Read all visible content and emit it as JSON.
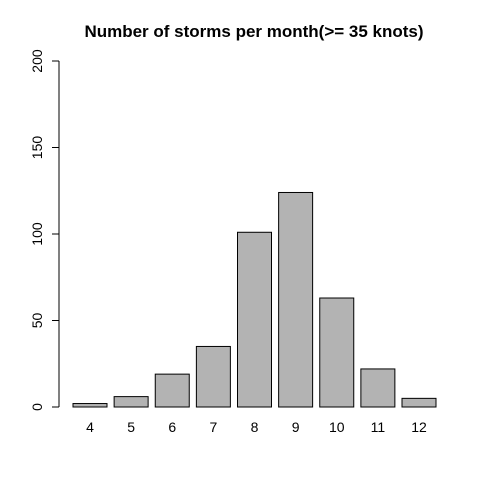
{
  "chart_data": {
    "type": "bar",
    "title": "Number of storms per month(>= 35 knots)",
    "xlabel": "",
    "ylabel": "",
    "categories": [
      "4",
      "5",
      "6",
      "7",
      "8",
      "9",
      "10",
      "11",
      "12"
    ],
    "values": [
      2,
      6,
      19,
      35,
      101,
      124,
      63,
      22,
      5
    ],
    "ylim": [
      0,
      200
    ],
    "y_ticks": [
      0,
      50,
      100,
      150,
      200
    ],
    "bar_color": "#b3b3b3",
    "bar_border_color": "#000000",
    "grid": false,
    "legend": "none"
  }
}
